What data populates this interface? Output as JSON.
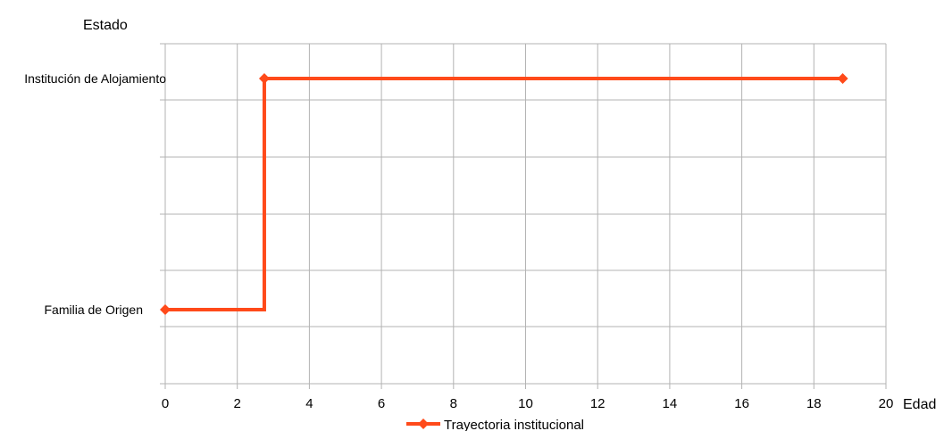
{
  "chart_data": {
    "type": "line",
    "ylabel": "Estado",
    "xlabel": "Edad",
    "xlim": [
      0,
      20
    ],
    "x_ticks": [
      "0",
      "2",
      "4",
      "6",
      "8",
      "10",
      "12",
      "14",
      "16",
      "18",
      "20"
    ],
    "y_categories": [
      "Familia de Origen",
      "Institución de Alojamiento"
    ],
    "grid": true,
    "legend_position": "bottom",
    "series": [
      {
        "name": "Trayectoria institucional",
        "color": "#ff4a1a",
        "marker": "diamond",
        "step": true,
        "points": [
          {
            "x": 0,
            "y": "Familia de Origen"
          },
          {
            "x": 2.75,
            "y": "Familia de Origen"
          },
          {
            "x": 2.75,
            "y": "Institución de Alojamiento"
          },
          {
            "x": 18.8,
            "y": "Institución de Alojamiento"
          }
        ],
        "markers_at": [
          0,
          3,
          3
        ]
      }
    ]
  }
}
